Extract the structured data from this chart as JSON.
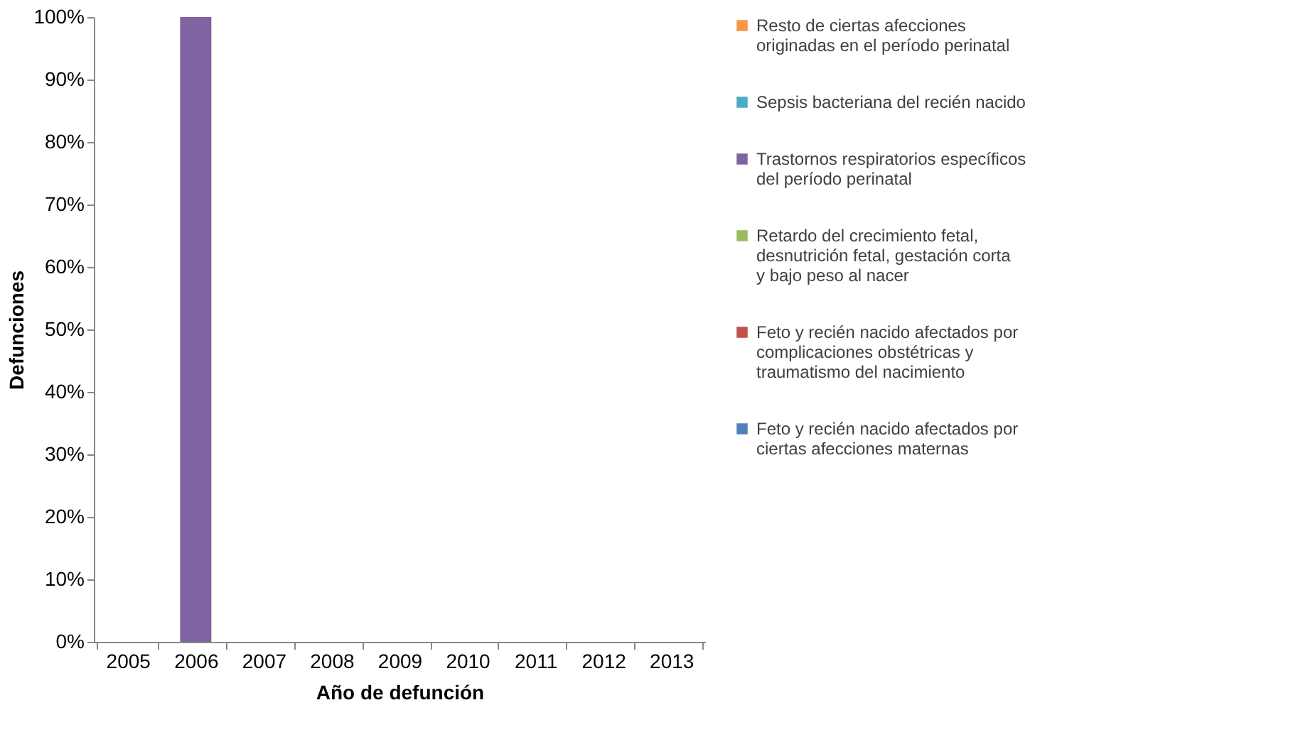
{
  "chart_data": {
    "type": "bar",
    "stacked": true,
    "xlabel": "Año de defunción",
    "ylabel": "Defunciones",
    "categories": [
      "2005",
      "2006",
      "2007",
      "2008",
      "2009",
      "2010",
      "2011",
      "2012",
      "2013"
    ],
    "series": [
      {
        "name": "Feto y recién nacido afectados por ciertas afecciones maternas",
        "color": "#4f81bd",
        "values": [
          0,
          0,
          0,
          0,
          0,
          0,
          0,
          0,
          0
        ]
      },
      {
        "name": "Feto y recién nacido afectados por complicaciones obstétricas y traumatismo del nacimiento",
        "color": "#c0504d",
        "values": [
          0,
          0,
          0,
          0,
          0,
          0,
          0,
          0,
          0
        ]
      },
      {
        "name": "Retardo del crecimiento fetal, desnutrición fetal, gestación corta y bajo peso al nacer",
        "color": "#9bbb59",
        "values": [
          0,
          0,
          0,
          0,
          0,
          0,
          0,
          0,
          0
        ]
      },
      {
        "name": "Trastornos respiratorios específicos del período perinatal",
        "color": "#8064a2",
        "values": [
          0,
          100,
          0,
          0,
          0,
          0,
          0,
          0,
          0
        ]
      },
      {
        "name": "Sepsis bacteriana del recién nacido",
        "color": "#4bacc6",
        "values": [
          0,
          0,
          0,
          0,
          0,
          0,
          0,
          0,
          0
        ]
      },
      {
        "name": "Resto de ciertas afecciones originadas en el período perinatal",
        "color": "#f79646",
        "values": [
          0,
          0,
          0,
          0,
          0,
          0,
          0,
          0,
          0
        ]
      }
    ],
    "ylim": [
      0,
      100
    ],
    "yticks": [
      {
        "value": 0,
        "label": "0%"
      },
      {
        "value": 10,
        "label": "10%"
      },
      {
        "value": 20,
        "label": "20%"
      },
      {
        "value": 30,
        "label": "30%"
      },
      {
        "value": 40,
        "label": "40%"
      },
      {
        "value": 50,
        "label": "50%"
      },
      {
        "value": 60,
        "label": "60%"
      },
      {
        "value": 70,
        "label": "70%"
      },
      {
        "value": 80,
        "label": "80%"
      },
      {
        "value": 90,
        "label": "90%"
      },
      {
        "value": 100,
        "label": "100%"
      }
    ],
    "grid": false,
    "legend": "right"
  }
}
